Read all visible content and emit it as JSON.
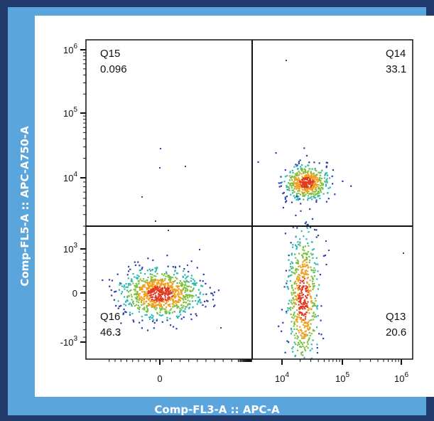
{
  "chart_data": {
    "type": "scatter",
    "subtype": "flow-cytometry-density-plot",
    "xlabel": "Comp-FL3-A :: APC-A",
    "ylabel": "Comp-FL5-A :: APC-A750-A",
    "x_scale": "biexponential",
    "y_scale": "biexponential",
    "x_ticks": [
      {
        "value": 0,
        "label": "0",
        "sup": ""
      },
      {
        "value": 10000,
        "label": "10",
        "sup": "4"
      },
      {
        "value": 100000,
        "label": "10",
        "sup": "5"
      },
      {
        "value": 1000000,
        "label": "10",
        "sup": "6"
      }
    ],
    "y_ticks": [
      {
        "value": 1000000,
        "label": "10",
        "sup": "6"
      },
      {
        "value": 100000,
        "label": "10",
        "sup": "5"
      },
      {
        "value": 10000,
        "label": "10",
        "sup": "4"
      },
      {
        "value": 1000,
        "label": "10",
        "sup": "3"
      },
      {
        "value": 0,
        "label": "0",
        "sup": ""
      },
      {
        "value": -1000,
        "label": "-10",
        "sup": "3"
      }
    ],
    "quadrants": [
      {
        "name": "Q15",
        "value": "0.096",
        "position": "top-left"
      },
      {
        "name": "Q14",
        "value": "33.1",
        "position": "top-right"
      },
      {
        "name": "Q16",
        "value": "46.3",
        "position": "bottom-left"
      },
      {
        "name": "Q13",
        "value": "20.6",
        "position": "bottom-right"
      }
    ],
    "gate": {
      "x": 3500,
      "y": 3000
    },
    "populations": [
      {
        "quadrant": "Q14",
        "x_center": 25000,
        "y_center": 9000,
        "fraction": 0.331
      },
      {
        "quadrant": "Q16",
        "x_center": 0,
        "y_center": 0,
        "fraction": 0.463
      },
      {
        "quadrant": "Q13",
        "x_center": 22000,
        "y_center": -100,
        "fraction": 0.206
      }
    ],
    "colors": {
      "low": "#2b3fa8",
      "mid": "#2fb7b0",
      "high": "#e03a1e"
    }
  }
}
